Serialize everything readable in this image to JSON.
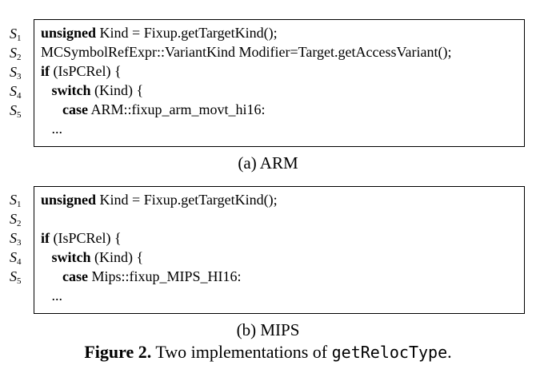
{
  "panels": [
    {
      "labels": [
        {
          "letter": "S",
          "num": "1"
        },
        {
          "letter": "S",
          "num": "2"
        },
        {
          "letter": "S",
          "num": "3"
        },
        {
          "letter": "S",
          "num": "4"
        },
        {
          "letter": "S",
          "num": "5"
        }
      ],
      "lines": [
        {
          "indent": "",
          "kw": "unsigned",
          "rest": " Kind = Fixup.getTargetKind();"
        },
        {
          "indent": "",
          "kw": "",
          "rest": "MCSymbolRefExpr::VariantKind Modifier=Target.getAccessVariant();"
        },
        {
          "indent": "",
          "kw": "if",
          "rest": " (IsPCRel) {"
        },
        {
          "indent": "   ",
          "kw": "switch",
          "rest": " (Kind) {"
        },
        {
          "indent": "      ",
          "kw": "case",
          "rest": " ARM::fixup_arm_movt_hi16:"
        },
        {
          "indent": "   ",
          "kw": "",
          "rest": "..."
        }
      ],
      "caption": "(a) ARM"
    },
    {
      "labels": [
        {
          "letter": "S",
          "num": "1"
        },
        {
          "letter": "S",
          "num": "2"
        },
        {
          "letter": "S",
          "num": "3"
        },
        {
          "letter": "S",
          "num": "4"
        },
        {
          "letter": "S",
          "num": "5"
        }
      ],
      "lines": [
        {
          "indent": "",
          "kw": "unsigned",
          "rest": " Kind = Fixup.getTargetKind();"
        },
        {
          "indent": "",
          "kw": "",
          "rest": ""
        },
        {
          "indent": "",
          "kw": "if",
          "rest": " (IsPCRel) {"
        },
        {
          "indent": "   ",
          "kw": "switch",
          "rest": " (Kind) {"
        },
        {
          "indent": "      ",
          "kw": "case",
          "rest": " Mips::fixup_MIPS_HI16:"
        },
        {
          "indent": "   ",
          "kw": "",
          "rest": "..."
        }
      ],
      "caption": "(b) MIPS"
    }
  ],
  "figure": {
    "number": "Figure 2.",
    "text": " Two implementations of ",
    "code": "getRelocType",
    "end": "."
  }
}
